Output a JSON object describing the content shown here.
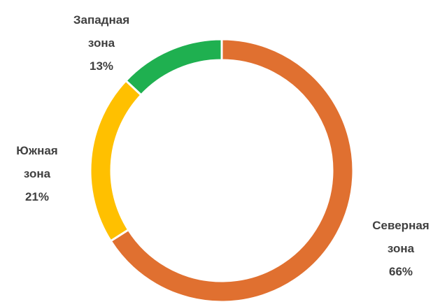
{
  "chart_data": {
    "type": "donut",
    "categories": [
      "Северная зона",
      "Южная зона",
      "Западная зона"
    ],
    "values": [
      66,
      21,
      13
    ],
    "value_labels": [
      "66%",
      "21%",
      "13%"
    ],
    "colors": [
      "#e07030",
      "#ffc000",
      "#1fb050"
    ]
  }
}
